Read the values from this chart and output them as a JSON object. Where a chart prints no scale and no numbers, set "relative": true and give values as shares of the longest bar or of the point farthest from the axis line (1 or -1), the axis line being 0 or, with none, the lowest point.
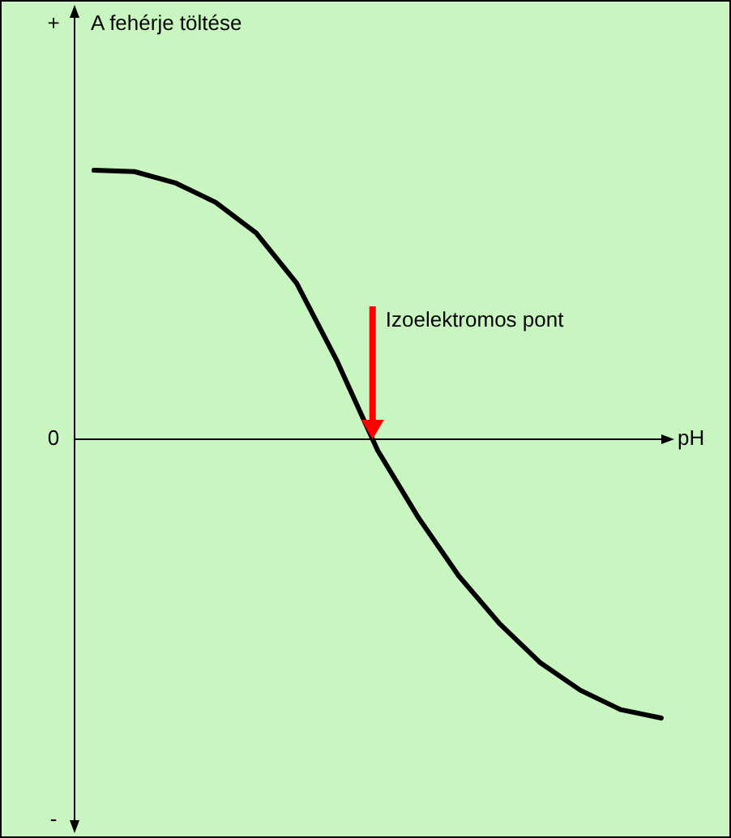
{
  "chart_data": {
    "type": "line",
    "relative": true,
    "xlabel": "pH",
    "categories": [
      null,
      null,
      null,
      null,
      null,
      null,
      null,
      null,
      null,
      null,
      null,
      null,
      null,
      null,
      null
    ],
    "series": [
      {
        "color": "#000000",
        "values": [
          0.965,
          0.96,
          0.92,
          0.85,
          0.74,
          0.56,
          0.28,
          -0.04,
          -0.28,
          -0.49,
          -0.66,
          -0.8,
          -0.9,
          -0.97,
          -1
        ]
      }
    ],
    "annotations": [
      "A fehérje töltése",
      "+",
      "0",
      "-",
      "Izoelektromos pont"
    ],
    "marker": "none",
    "line_style": "solid"
  }
}
